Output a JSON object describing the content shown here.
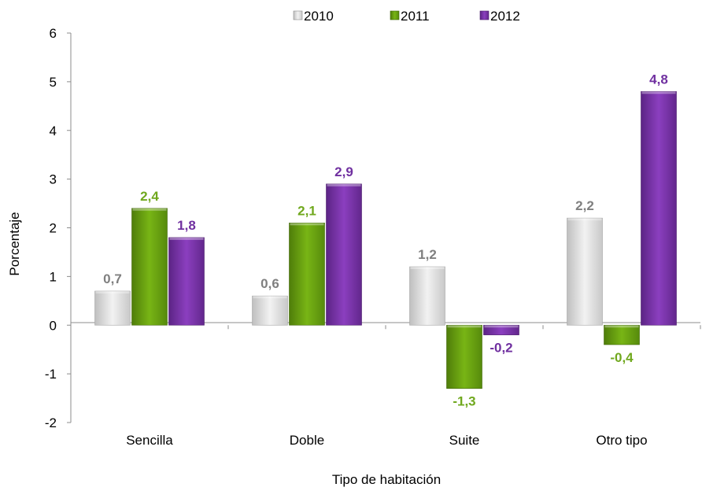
{
  "chart_data": {
    "type": "bar",
    "categories": [
      "Sencilla",
      "Doble",
      "Suite",
      "Otro tipo"
    ],
    "series": [
      {
        "name": "2010",
        "values": [
          0.7,
          0.6,
          1.2,
          2.2
        ],
        "labels": [
          "0,7",
          "0,6",
          "1,2",
          "2,2"
        ],
        "color": "#d9d9d9",
        "label_color": "#7f7f7f"
      },
      {
        "name": "2011",
        "values": [
          2.4,
          2.1,
          -1.3,
          -0.4
        ],
        "labels": [
          "2,4",
          "2,1",
          "-1,3",
          "-0,4"
        ],
        "color": "#6aa10f",
        "label_color": "#70a81e"
      },
      {
        "name": "2012",
        "values": [
          1.8,
          2.9,
          -0.2,
          4.8
        ],
        "labels": [
          "1,8",
          "2,9",
          "-0,2",
          "4,8"
        ],
        "color": "#7a32a8",
        "label_color": "#7030a0"
      }
    ],
    "y_ticks": [
      "6",
      "5",
      "4",
      "3",
      "2",
      "1",
      "0",
      "-1",
      "-2"
    ],
    "ylim": [
      -2,
      6
    ],
    "xlabel": "Tipo de habitación",
    "ylabel": "Porcentaje",
    "legend_position": "top",
    "grid": false
  }
}
